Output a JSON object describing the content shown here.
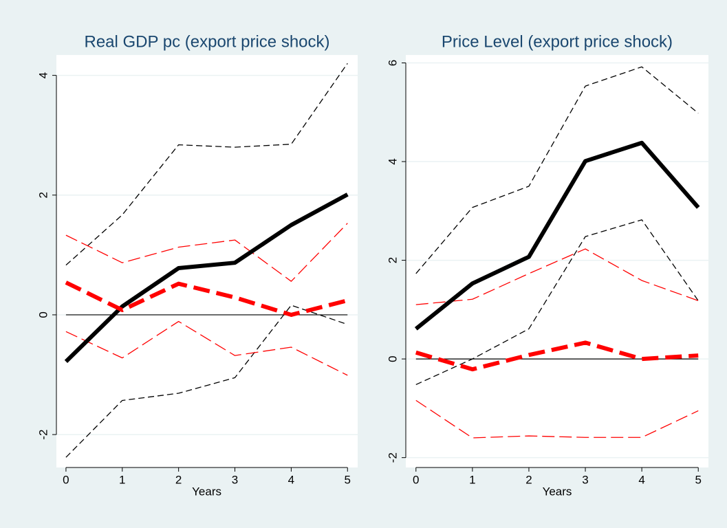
{
  "chart_data": [
    {
      "type": "line",
      "title": "Real GDP pc (export price shock)",
      "x_label": "Years",
      "x": [
        0,
        1,
        2,
        3,
        4,
        5
      ],
      "xlim": [
        -0.17,
        5.18
      ],
      "xticks": [
        0,
        1,
        2,
        3,
        4,
        5
      ],
      "ylim": [
        -2.55,
        4.34
      ],
      "yticks": [
        -2,
        0,
        2,
        4
      ],
      "grid": true,
      "reference_line": 0,
      "series": [
        {
          "color": "#000000",
          "line_style": "dashed",
          "weight": "thin",
          "values": [
            0.83,
            1.67,
            2.84,
            2.8,
            2.85,
            4.2
          ]
        },
        {
          "color": "#000000",
          "line_style": "dashed",
          "weight": "thin",
          "values": [
            -2.38,
            -1.43,
            -1.31,
            -1.05,
            0.16,
            -0.16
          ]
        },
        {
          "color": "#ff0000",
          "line_style": "long-dash",
          "weight": "thin",
          "values": [
            1.33,
            0.87,
            1.13,
            1.25,
            0.56,
            1.53
          ]
        },
        {
          "color": "#ff0000",
          "line_style": "long-dash",
          "weight": "thin",
          "values": [
            -0.28,
            -0.72,
            -0.11,
            -0.68,
            -0.54,
            -1.01
          ]
        },
        {
          "color": "#000000",
          "line_style": "solid",
          "weight": "thick",
          "values": [
            -0.78,
            0.14,
            0.78,
            0.87,
            1.5,
            2.01
          ]
        },
        {
          "color": "#ff0000",
          "line_style": "long-dash",
          "weight": "thick",
          "values": [
            0.54,
            0.08,
            0.52,
            0.29,
            0.0,
            0.24
          ]
        }
      ]
    },
    {
      "type": "line",
      "title": "Price Level (export price shock)",
      "x_label": "Years",
      "x": [
        0,
        1,
        2,
        3,
        4,
        5
      ],
      "xlim": [
        -0.18,
        5.18
      ],
      "xticks": [
        0,
        1,
        2,
        3,
        4,
        5
      ],
      "ylim": [
        -2.2,
        6.16
      ],
      "yticks": [
        -2,
        0,
        2,
        4,
        6
      ],
      "grid": true,
      "reference_line": 0,
      "series": [
        {
          "color": "#000000",
          "line_style": "dashed",
          "weight": "thin",
          "values": [
            1.73,
            3.07,
            3.5,
            5.53,
            5.92,
            4.98
          ]
        },
        {
          "color": "#000000",
          "line_style": "dashed",
          "weight": "thin",
          "values": [
            -0.52,
            0.0,
            0.61,
            2.48,
            2.82,
            1.18
          ]
        },
        {
          "color": "#ff0000",
          "line_style": "long-dash",
          "weight": "thin",
          "values": [
            1.1,
            1.21,
            1.73,
            2.23,
            1.59,
            1.18
          ]
        },
        {
          "color": "#ff0000",
          "line_style": "long-dash",
          "weight": "thin",
          "values": [
            -0.84,
            -1.6,
            -1.56,
            -1.59,
            -1.59,
            -1.05
          ]
        },
        {
          "color": "#000000",
          "line_style": "solid",
          "weight": "thick",
          "values": [
            0.61,
            1.53,
            2.07,
            4.01,
            4.38,
            3.07
          ]
        },
        {
          "color": "#ff0000",
          "line_style": "long-dash",
          "weight": "thick",
          "values": [
            0.13,
            -0.21,
            0.08,
            0.33,
            0.0,
            0.07
          ]
        }
      ]
    }
  ]
}
